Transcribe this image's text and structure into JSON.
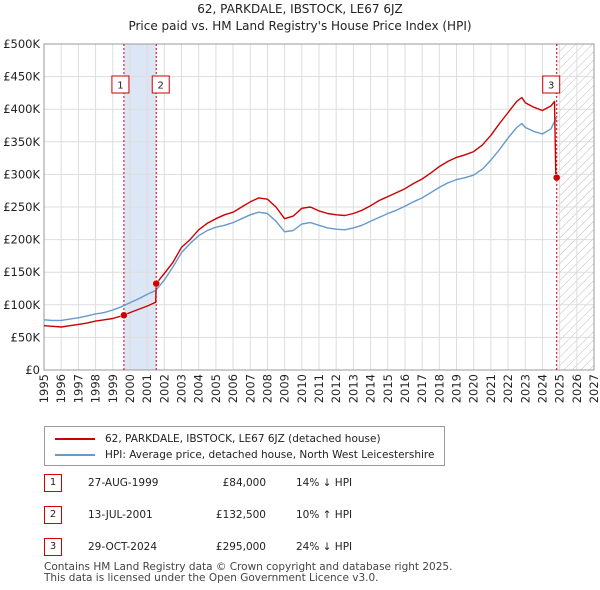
{
  "chart_data": {
    "type": "line",
    "title": "62, PARKDALE, IBSTOCK, LE67 6JZ",
    "subtitle": "Price paid vs. HM Land Registry's House Price Index (HPI)",
    "xlim": [
      1995,
      2027
    ],
    "ylim": [
      0,
      500000
    ],
    "x_ticks": [
      1995,
      1996,
      1997,
      1998,
      1999,
      2000,
      2001,
      2002,
      2003,
      2004,
      2005,
      2006,
      2007,
      2008,
      2009,
      2010,
      2011,
      2012,
      2013,
      2014,
      2015,
      2016,
      2017,
      2018,
      2019,
      2020,
      2021,
      2022,
      2023,
      2024,
      2025,
      2026,
      2027
    ],
    "y_ticks": [
      {
        "value": 0,
        "label": "£0"
      },
      {
        "value": 50000,
        "label": "£50K"
      },
      {
        "value": 100000,
        "label": "£100K"
      },
      {
        "value": 150000,
        "label": "£150K"
      },
      {
        "value": 200000,
        "label": "£200K"
      },
      {
        "value": 250000,
        "label": "£250K"
      },
      {
        "value": 300000,
        "label": "£300K"
      },
      {
        "value": 350000,
        "label": "£350K"
      },
      {
        "value": 400000,
        "label": "£400K"
      },
      {
        "value": 450000,
        "label": "£450K"
      },
      {
        "value": 500000,
        "label": "£500K"
      }
    ],
    "grid": true,
    "shaded_region": [
      1999.65,
      2001.53
    ],
    "future_hatch_from": 2024.83,
    "series": [
      {
        "name": "62, PARKDALE, IBSTOCK, LE67 6JZ (detached house)",
        "color": "#cc0000",
        "points": [
          [
            1995,
            68000
          ],
          [
            1995.5,
            67000
          ],
          [
            1996,
            66000
          ],
          [
            1996.5,
            68000
          ],
          [
            1997,
            70000
          ],
          [
            1997.5,
            72000
          ],
          [
            1998,
            75000
          ],
          [
            1998.5,
            77000
          ],
          [
            1999,
            79000
          ],
          [
            1999.65,
            84000
          ],
          [
            2000,
            88000
          ],
          [
            2000.5,
            93000
          ],
          [
            2001,
            98000
          ],
          [
            2001.5,
            104000
          ],
          [
            2001.53,
            132500
          ],
          [
            2002,
            148000
          ],
          [
            2002.5,
            165000
          ],
          [
            2003,
            188000
          ],
          [
            2003.5,
            200000
          ],
          [
            2004,
            215000
          ],
          [
            2004.5,
            225000
          ],
          [
            2005,
            232000
          ],
          [
            2005.5,
            238000
          ],
          [
            2006,
            242000
          ],
          [
            2006.5,
            250000
          ],
          [
            2007,
            258000
          ],
          [
            2007.5,
            264000
          ],
          [
            2008,
            262000
          ],
          [
            2008.5,
            250000
          ],
          [
            2009,
            232000
          ],
          [
            2009.5,
            236000
          ],
          [
            2010,
            248000
          ],
          [
            2010.5,
            250000
          ],
          [
            2011,
            244000
          ],
          [
            2011.5,
            240000
          ],
          [
            2012,
            238000
          ],
          [
            2012.5,
            237000
          ],
          [
            2013,
            240000
          ],
          [
            2013.5,
            245000
          ],
          [
            2014,
            252000
          ],
          [
            2014.5,
            260000
          ],
          [
            2015,
            266000
          ],
          [
            2015.5,
            272000
          ],
          [
            2016,
            278000
          ],
          [
            2016.5,
            286000
          ],
          [
            2017,
            293000
          ],
          [
            2017.5,
            302000
          ],
          [
            2018,
            312000
          ],
          [
            2018.5,
            320000
          ],
          [
            2019,
            326000
          ],
          [
            2019.5,
            330000
          ],
          [
            2020,
            335000
          ],
          [
            2020.5,
            345000
          ],
          [
            2021,
            360000
          ],
          [
            2021.5,
            378000
          ],
          [
            2022,
            395000
          ],
          [
            2022.5,
            412000
          ],
          [
            2022.8,
            418000
          ],
          [
            2023,
            410000
          ],
          [
            2023.5,
            403000
          ],
          [
            2024,
            398000
          ],
          [
            2024.5,
            405000
          ],
          [
            2024.7,
            412000
          ],
          [
            2024.78,
            300000
          ],
          [
            2024.83,
            295000
          ]
        ]
      },
      {
        "name": "HPI: Average price, detached house, North West Leicestershire",
        "color": "#6699cc",
        "points": [
          [
            1995,
            77000
          ],
          [
            1995.5,
            76000
          ],
          [
            1996,
            76000
          ],
          [
            1996.5,
            78000
          ],
          [
            1997,
            80000
          ],
          [
            1997.5,
            83000
          ],
          [
            1998,
            86000
          ],
          [
            1998.5,
            88000
          ],
          [
            1999,
            92000
          ],
          [
            1999.5,
            97000
          ],
          [
            2000,
            103000
          ],
          [
            2000.5,
            109000
          ],
          [
            2001,
            116000
          ],
          [
            2001.5,
            122000
          ],
          [
            2002,
            138000
          ],
          [
            2002.5,
            158000
          ],
          [
            2003,
            180000
          ],
          [
            2003.5,
            194000
          ],
          [
            2004,
            206000
          ],
          [
            2004.5,
            214000
          ],
          [
            2005,
            219000
          ],
          [
            2005.5,
            222000
          ],
          [
            2006,
            226000
          ],
          [
            2006.5,
            232000
          ],
          [
            2007,
            238000
          ],
          [
            2007.5,
            242000
          ],
          [
            2008,
            240000
          ],
          [
            2008.5,
            228000
          ],
          [
            2009,
            212000
          ],
          [
            2009.5,
            214000
          ],
          [
            2010,
            224000
          ],
          [
            2010.5,
            226000
          ],
          [
            2011,
            222000
          ],
          [
            2011.5,
            218000
          ],
          [
            2012,
            216000
          ],
          [
            2012.5,
            215000
          ],
          [
            2013,
            218000
          ],
          [
            2013.5,
            222000
          ],
          [
            2014,
            228000
          ],
          [
            2014.5,
            234000
          ],
          [
            2015,
            240000
          ],
          [
            2015.5,
            245000
          ],
          [
            2016,
            251000
          ],
          [
            2016.5,
            258000
          ],
          [
            2017,
            264000
          ],
          [
            2017.5,
            272000
          ],
          [
            2018,
            280000
          ],
          [
            2018.5,
            287000
          ],
          [
            2019,
            292000
          ],
          [
            2019.5,
            295000
          ],
          [
            2020,
            299000
          ],
          [
            2020.5,
            308000
          ],
          [
            2021,
            322000
          ],
          [
            2021.5,
            338000
          ],
          [
            2022,
            356000
          ],
          [
            2022.5,
            372000
          ],
          [
            2022.8,
            378000
          ],
          [
            2023,
            372000
          ],
          [
            2023.5,
            366000
          ],
          [
            2024,
            362000
          ],
          [
            2024.5,
            370000
          ],
          [
            2024.83,
            388000
          ]
        ]
      }
    ],
    "sale_markers": [
      {
        "label": "1",
        "x": 1999.65,
        "y": 84000
      },
      {
        "label": "2",
        "x": 2001.53,
        "y": 132500
      },
      {
        "label": "3",
        "x": 2024.83,
        "y": 295000
      }
    ]
  },
  "legend": {
    "property_label": "62, PARKDALE, IBSTOCK, LE67 6JZ (detached house)",
    "hpi_label": "HPI: Average price, detached house, North West Leicestershire",
    "property_color": "#cc0000",
    "hpi_color": "#6699cc"
  },
  "sales": [
    {
      "num": "1",
      "date": "27-AUG-1999",
      "price": "£84,000",
      "hpi": "14% ↓ HPI"
    },
    {
      "num": "2",
      "date": "13-JUL-2001",
      "price": "£132,500",
      "hpi": "10% ↑ HPI"
    },
    {
      "num": "3",
      "date": "29-OCT-2024",
      "price": "£295,000",
      "hpi": "24% ↓ HPI"
    }
  ],
  "footer": {
    "line1": "Contains HM Land Registry data © Crown copyright and database right 2025.",
    "line2": "This data is licensed under the Open Government Licence v3.0."
  }
}
